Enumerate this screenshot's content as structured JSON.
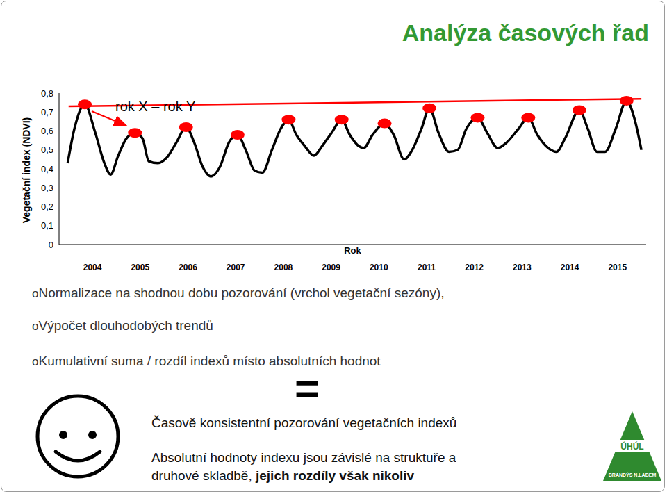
{
  "title": "Analýza časových řad",
  "chart_data": {
    "type": "line",
    "y_label": "Vegetační index (NDVI)",
    "x_label": "Rok",
    "xlim": [
      2003.3,
      2015.6
    ],
    "xticks": [
      2004,
      2005,
      2006,
      2007,
      2008,
      2009,
      2010,
      2011,
      2012,
      2013,
      2014,
      2015
    ],
    "ylim": [
      0,
      0.8
    ],
    "yticks": [
      0,
      {
        "value": 0.1,
        "label": "0,1"
      },
      {
        "value": 0.2,
        "label": "0,2"
      },
      {
        "value": 0.3,
        "label": "0,3"
      },
      {
        "value": 0.4,
        "label": "0,4"
      },
      {
        "value": 0.5,
        "label": "0,5"
      },
      {
        "value": 0.6,
        "label": "0,6"
      },
      {
        "value": 0.7,
        "label": "0,7"
      },
      {
        "value": 0.8,
        "label": "0,8"
      }
    ],
    "grid": false,
    "annotations": [
      {
        "text": "rok X – rok Y"
      }
    ],
    "series": [
      {
        "type": "line",
        "color": "#000000",
        "line_style": "solid",
        "x": [
          2003.48,
          2003.62,
          2003.84,
          2004.06,
          2004.25,
          2004.38,
          2004.54,
          2004.71,
          2004.89,
          2005.05,
          2005.18,
          2005.37,
          2005.56,
          2005.76,
          2005.96,
          2006.13,
          2006.31,
          2006.48,
          2006.67,
          2006.86,
          2007.04,
          2007.21,
          2007.4,
          2007.56,
          2007.76,
          2007.94,
          2008.11,
          2008.27,
          2008.45,
          2008.64,
          2008.81,
          2009.01,
          2009.22,
          2009.39,
          2009.58,
          2009.68,
          2009.87,
          2010.12,
          2010.31,
          2010.53,
          2010.7,
          2010.89,
          2011.06,
          2011.25,
          2011.47,
          2011.65,
          2011.83,
          2012.07,
          2012.27,
          2012.49,
          2012.68,
          2012.92,
          2013.13,
          2013.32,
          2013.55,
          2013.72,
          2013.9,
          2014.2,
          2014.38,
          2014.57,
          2014.74,
          2014.96,
          2015.19,
          2015.35,
          2015.5
        ],
        "values": [
          0.43,
          0.61,
          0.74,
          0.59,
          0.43,
          0.37,
          0.47,
          0.56,
          0.59,
          0.56,
          0.44,
          0.43,
          0.46,
          0.54,
          0.62,
          0.54,
          0.41,
          0.36,
          0.41,
          0.54,
          0.58,
          0.5,
          0.39,
          0.38,
          0.5,
          0.61,
          0.66,
          0.58,
          0.52,
          0.47,
          0.52,
          0.59,
          0.66,
          0.58,
          0.52,
          0.51,
          0.58,
          0.64,
          0.58,
          0.45,
          0.5,
          0.61,
          0.72,
          0.59,
          0.49,
          0.5,
          0.61,
          0.67,
          0.59,
          0.51,
          0.54,
          0.61,
          0.67,
          0.58,
          0.51,
          0.49,
          0.56,
          0.71,
          0.61,
          0.49,
          0.49,
          0.61,
          0.76,
          0.67,
          0.5
        ]
      },
      {
        "type": "line",
        "color": "#ff0000",
        "line_style": "solid",
        "x": [
          2003.5,
          2015.5
        ],
        "values": [
          0.73,
          0.77
        ]
      },
      {
        "type": "scatter",
        "color": "#ff0000",
        "marker": "ellipse",
        "x": [
          2003.84,
          2004.89,
          2005.96,
          2007.04,
          2008.11,
          2009.22,
          2010.12,
          2011.06,
          2012.07,
          2013.13,
          2014.2,
          2015.19
        ],
        "values": [
          0.74,
          0.59,
          0.62,
          0.58,
          0.66,
          0.66,
          0.64,
          0.72,
          0.67,
          0.67,
          0.71,
          0.76
        ]
      }
    ]
  },
  "bullets": [
    "Normalizace na shodnou dobu pozorování (vrchol vegetační sezóny),",
    "Výpočet dlouhodobých trendů",
    "Kumulativní suma / rozdíl indexů místo absolutních hodnot"
  ],
  "bullet_marker": "o",
  "equals": "=",
  "conclusion": "Časově konsistentní pozorování vegetačních indexů",
  "note": {
    "lines": [
      "Absolutní hodnoty indexu jsou závislé na struktuře a",
      "druhové skladbě,"
    ],
    "emphasis": "jejich rozdíly však nikoliv"
  },
  "logo": {
    "name": "ÚHÚL",
    "place": "BRANDÝS N.LABEM"
  }
}
